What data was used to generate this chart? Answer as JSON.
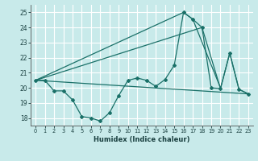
{
  "xlabel": "Humidex (Indice chaleur)",
  "background_color": "#c8eaea",
  "grid_color": "#ffffff",
  "line_color": "#1a7068",
  "xlim": [
    -0.5,
    23.5
  ],
  "ylim": [
    17.5,
    25.5
  ],
  "yticks": [
    18,
    19,
    20,
    21,
    22,
    23,
    24,
    25
  ],
  "xticks": [
    0,
    1,
    2,
    3,
    4,
    5,
    6,
    7,
    8,
    9,
    10,
    11,
    12,
    13,
    14,
    15,
    16,
    17,
    18,
    19,
    20,
    21,
    22,
    23
  ],
  "line1_x": [
    0,
    1,
    2,
    3,
    4,
    5,
    6,
    7,
    8,
    9,
    10,
    11,
    12,
    13,
    14,
    15,
    16,
    17,
    18,
    19,
    20,
    21,
    22,
    23
  ],
  "line1_y": [
    20.5,
    20.5,
    19.8,
    19.8,
    19.2,
    18.1,
    18.0,
    17.8,
    18.35,
    19.5,
    20.5,
    20.65,
    20.5,
    20.1,
    20.55,
    21.5,
    25.0,
    24.55,
    24.0,
    20.0,
    19.95,
    22.3,
    19.9,
    19.6
  ],
  "line2_x": [
    0,
    16,
    17,
    20
  ],
  "line2_y": [
    20.5,
    25.0,
    24.55,
    20.0
  ],
  "line3_x": [
    0,
    18,
    20,
    21,
    22,
    23
  ],
  "line3_y": [
    20.5,
    24.0,
    19.95,
    22.3,
    19.9,
    19.6
  ],
  "line4_x": [
    0,
    23
  ],
  "line4_y": [
    20.5,
    19.6
  ]
}
